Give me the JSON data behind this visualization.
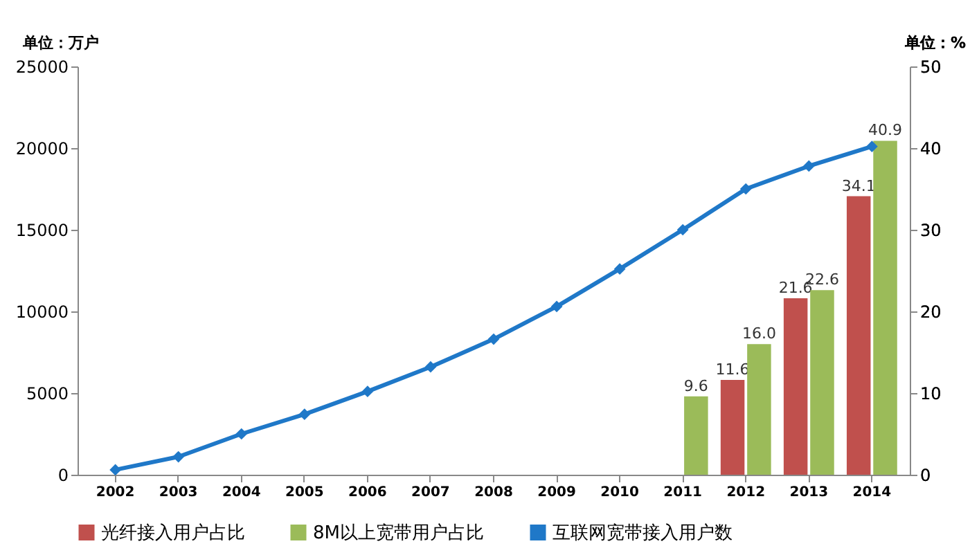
{
  "chart_data": {
    "type": "bar",
    "ylabel": "单位：万户",
    "y2label": "单位：%",
    "categories": [
      "2002",
      "2003",
      "2004",
      "2005",
      "2006",
      "2007",
      "2008",
      "2009",
      "2010",
      "2011",
      "2012",
      "2013",
      "2014"
    ],
    "series": [
      {
        "name": "光纤接入用户占比",
        "axis": "y2",
        "color": "#c0504d",
        "values": [
          null,
          null,
          null,
          null,
          null,
          null,
          null,
          null,
          null,
          null,
          11.6,
          21.6,
          34.1
        ],
        "value_labels": [
          null,
          null,
          null,
          null,
          null,
          null,
          null,
          null,
          null,
          null,
          "11.6",
          "21.6",
          "34.1"
        ]
      },
      {
        "name": "8M以上宽带用户占比",
        "axis": "y2",
        "color": "#9bbb59",
        "values": [
          null,
          null,
          null,
          null,
          null,
          null,
          null,
          null,
          null,
          9.6,
          16.0,
          22.6,
          40.9
        ],
        "value_labels": [
          null,
          null,
          null,
          null,
          null,
          null,
          null,
          null,
          null,
          "9.6",
          "16.0",
          "22.6",
          "40.9"
        ]
      },
      {
        "name": "互联网宽带接入用户数",
        "type": "line",
        "axis": "y",
        "color": "#1f78c8",
        "marker": "diamond",
        "line_style": "solid",
        "values": [
          300,
          1100,
          2500,
          3700,
          5100,
          6600,
          8300,
          10300,
          12600,
          15000,
          17500,
          18900,
          20100
        ]
      }
    ],
    "ylim": [
      0,
      25000
    ],
    "yticks": [
      0,
      5000,
      10000,
      15000,
      20000,
      25000
    ],
    "y2lim": [
      0,
      50
    ],
    "y2ticks": [
      0,
      10,
      20,
      30,
      40,
      50
    ],
    "grid": false,
    "legend": "bottom"
  }
}
